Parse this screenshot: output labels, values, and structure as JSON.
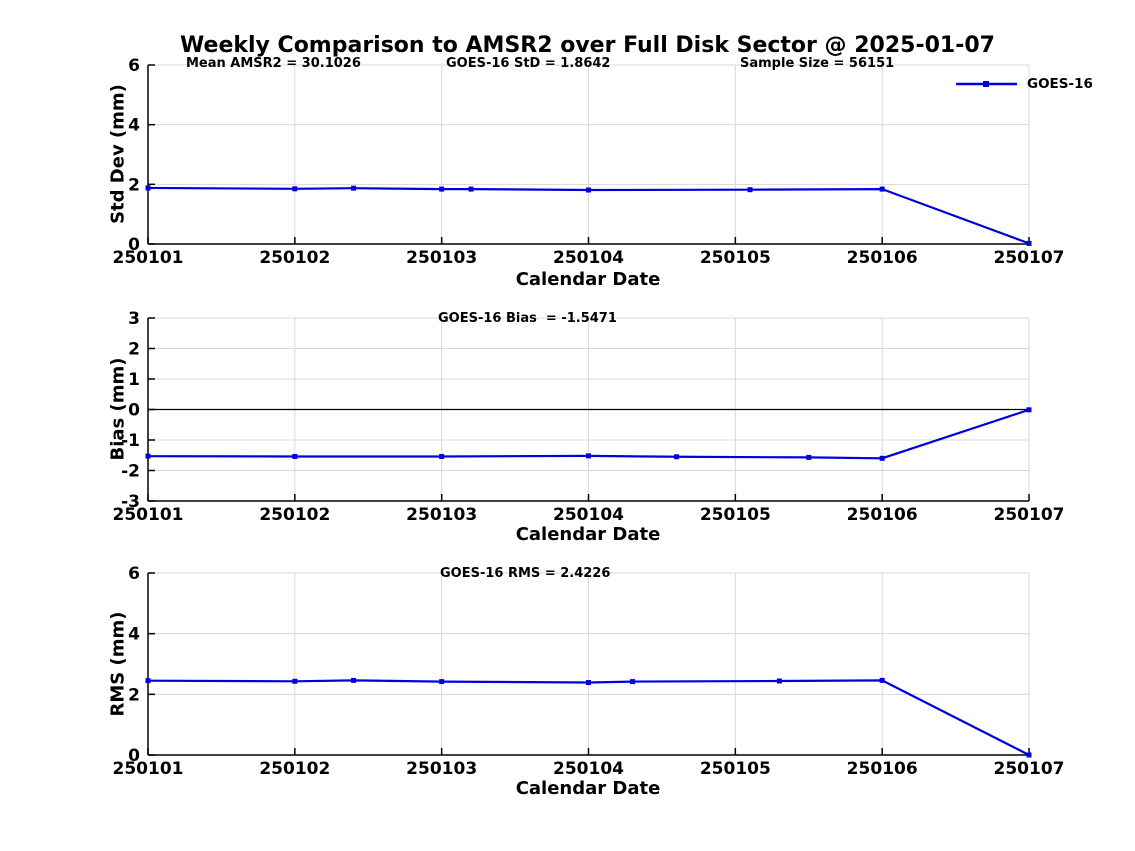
{
  "title": "Weekly Comparison to AMSR2 over Full Disk Sector @ 2025-01-07",
  "legend": {
    "label": "GOES-16",
    "color": "#0000dd"
  },
  "colors": {
    "line": "#0000dd",
    "grid": "#d8d8d8",
    "axis": "#000000"
  },
  "chart_data": [
    {
      "type": "line",
      "ylabel": "Std Dev (mm)",
      "xlabel": "Calendar Date",
      "ylim": [
        0,
        6
      ],
      "y_ticks": [
        0,
        2,
        4,
        6
      ],
      "x_tick_labels": [
        "250101",
        "250102",
        "250103",
        "250104",
        "250105",
        "250106",
        "250107"
      ],
      "annotations": [
        "Mean AMSR2 = 30.1026",
        "GOES-16 StD = 1.8642",
        "Sample Size = 56151"
      ],
      "grid": true,
      "zero_line": false,
      "legend_position": "northeast",
      "series": [
        {
          "name": "GOES-16",
          "color": "#0000dd",
          "x": [
            1,
            2,
            2.4,
            3,
            3.2,
            4,
            5.1,
            6,
            7
          ],
          "y": [
            1.88,
            1.85,
            1.87,
            1.84,
            1.84,
            1.81,
            1.82,
            1.84,
            0.02
          ]
        }
      ]
    },
    {
      "type": "line",
      "ylabel": "Bias (mm)",
      "xlabel": "Calendar Date",
      "ylim": [
        -3,
        3
      ],
      "y_ticks": [
        -3,
        -2,
        -1,
        0,
        1,
        2,
        3
      ],
      "x_tick_labels": [
        "250101",
        "250102",
        "250103",
        "250104",
        "250105",
        "250106",
        "250107"
      ],
      "annotations": [
        "GOES-16 Bias  = -1.5471"
      ],
      "grid": true,
      "zero_line": true,
      "series": [
        {
          "name": "GOES-16",
          "color": "#0000dd",
          "x": [
            1,
            2,
            3,
            4,
            4.6,
            5.5,
            6,
            7
          ],
          "y": [
            -1.53,
            -1.54,
            -1.54,
            -1.52,
            -1.55,
            -1.57,
            -1.6,
            -0.01
          ]
        }
      ]
    },
    {
      "type": "line",
      "ylabel": "RMS (mm)",
      "xlabel": "Calendar Date",
      "ylim": [
        0,
        6
      ],
      "y_ticks": [
        0,
        2,
        4,
        6
      ],
      "x_tick_labels": [
        "250101",
        "250102",
        "250103",
        "250104",
        "250105",
        "250106",
        "250107"
      ],
      "annotations": [
        "GOES-16 RMS = 2.4226"
      ],
      "grid": true,
      "zero_line": false,
      "series": [
        {
          "name": "GOES-16",
          "color": "#0000dd",
          "x": [
            1,
            2,
            2.4,
            3,
            4,
            4.3,
            5.3,
            6,
            7
          ],
          "y": [
            2.45,
            2.43,
            2.46,
            2.42,
            2.39,
            2.42,
            2.44,
            2.46,
            0.0
          ]
        }
      ]
    }
  ]
}
